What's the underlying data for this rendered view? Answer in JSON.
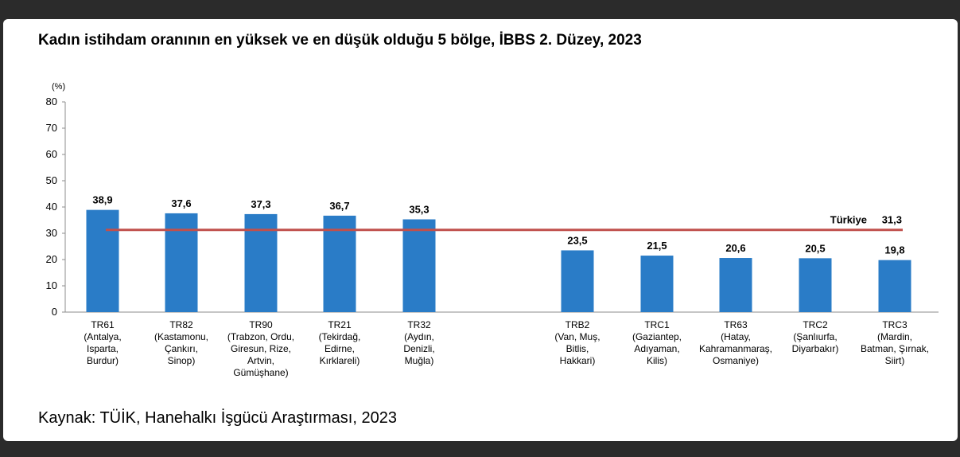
{
  "chart_data": {
    "type": "bar",
    "title": "Kadın istihdam oranının en yüksek ve en düşük olduğu 5 bölge, İBBS 2. Düzey, 2023",
    "ylabel": "(%)",
    "ylim": [
      0,
      80
    ],
    "yticks": [
      "0",
      "10",
      "20",
      "30",
      "40",
      "50",
      "60",
      "70",
      "80"
    ],
    "grid": false,
    "bar_color": "#2a7cc7",
    "reference_line": {
      "label": "Türkiye",
      "value": 31.3,
      "value_label": "31,3",
      "color": "#c0504d"
    },
    "bars": [
      {
        "code": "TR61",
        "names": [
          "(Antalya,",
          "Isparta,",
          "Burdur)"
        ],
        "value": 38.9,
        "value_label": "38,9"
      },
      {
        "code": "TR82",
        "names": [
          "(Kastamonu,",
          "Çankırı,",
          "Sinop)"
        ],
        "value": 37.6,
        "value_label": "37,6"
      },
      {
        "code": "TR90",
        "names": [
          "(Trabzon, Ordu,",
          "Giresun, Rize,",
          "Artvin,",
          "Gümüşhane)"
        ],
        "value": 37.3,
        "value_label": "37,3"
      },
      {
        "code": "TR21",
        "names": [
          "(Tekirdağ,",
          "Edirne,",
          "Kırklareli)"
        ],
        "value": 36.7,
        "value_label": "36,7"
      },
      {
        "code": "TR32",
        "names": [
          "(Aydın,",
          "Denizli,",
          "Muğla)"
        ],
        "value": 35.3,
        "value_label": "35,3"
      },
      {
        "code": "TRB2",
        "names": [
          "(Van, Muş,",
          "Bitlis,",
          "Hakkari)"
        ],
        "value": 23.5,
        "value_label": "23,5"
      },
      {
        "code": "TRC1",
        "names": [
          "(Gaziantep,",
          "Adıyaman,",
          "Kilis)"
        ],
        "value": 21.5,
        "value_label": "21,5"
      },
      {
        "code": "TR63",
        "names": [
          "(Hatay,",
          "Kahramanmaraş,",
          "Osmaniye)"
        ],
        "value": 20.6,
        "value_label": "20,6"
      },
      {
        "code": "TRC2",
        "names": [
          "(Şanlıurfa,",
          "Diyarbakır)"
        ],
        "value": 20.5,
        "value_label": "20,5"
      },
      {
        "code": "TRC3",
        "names": [
          "(Mardin,",
          "Batman, Şırnak,",
          "Siirt)"
        ],
        "value": 19.8,
        "value_label": "19,8"
      }
    ]
  },
  "source": "Kaynak: TÜİK, Hanehalkı İşgücü Araştırması, 2023"
}
